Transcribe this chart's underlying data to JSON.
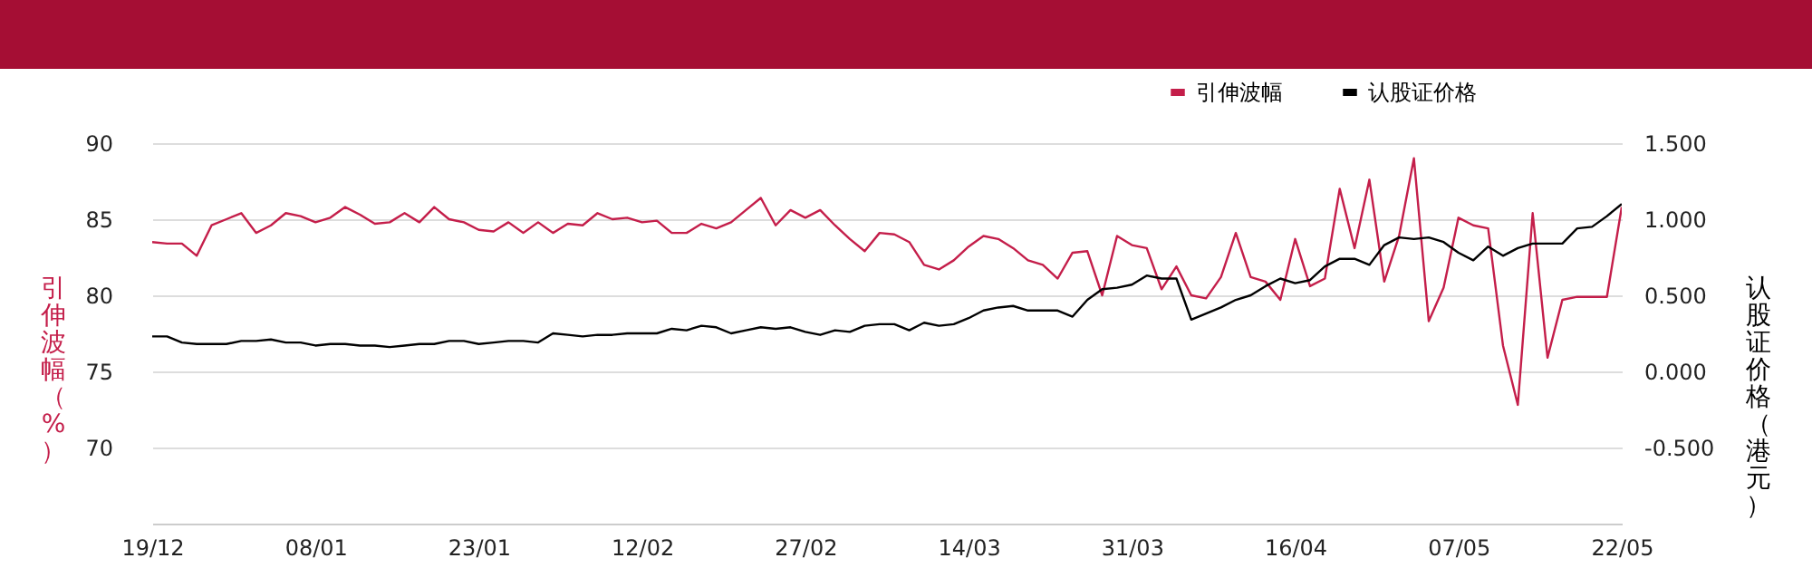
{
  "chart_data": {
    "type": "line",
    "ylabel": "引伸波幅（%）",
    "y2label": "认股证价格（港元）",
    "legend": "top right",
    "grid": "y",
    "categories": [
      "19/12",
      null,
      null,
      null,
      null,
      null,
      null,
      null,
      null,
      null,
      null,
      "08/01",
      null,
      null,
      null,
      null,
      null,
      null,
      null,
      null,
      null,
      null,
      "23/01",
      null,
      null,
      null,
      null,
      null,
      null,
      null,
      null,
      null,
      null,
      "12/02",
      null,
      null,
      null,
      null,
      null,
      null,
      null,
      null,
      null,
      null,
      "27/02",
      null,
      null,
      null,
      null,
      null,
      null,
      null,
      null,
      null,
      null,
      "14/03",
      null,
      null,
      null,
      null,
      null,
      null,
      null,
      null,
      null,
      null,
      "31/03",
      null,
      null,
      null,
      null,
      null,
      null,
      null,
      null,
      null,
      null,
      "16/04",
      null,
      null,
      null,
      null,
      null,
      null,
      null,
      null,
      null,
      null,
      "07/05",
      null,
      null,
      null,
      null,
      null,
      null,
      null,
      null,
      null,
      null,
      "22/05"
    ],
    "ylim": [
      65,
      90
    ],
    "yticks": [
      70,
      75,
      80,
      85,
      90
    ],
    "y2lim": [
      -1,
      1.5
    ],
    "y2ticks": [
      {
        "value": -0.5,
        "label": "-0.500"
      },
      {
        "value": 0,
        "label": "0.000"
      },
      {
        "value": 0.5,
        "label": "0.500"
      },
      {
        "value": 1,
        "label": "1.000"
      },
      {
        "value": 1.5,
        "label": "1.500"
      }
    ],
    "series": [
      {
        "name": "引伸波幅",
        "color": "#c41e4a",
        "values": [
          83.5,
          83.4,
          83.4,
          82.6,
          84.6,
          85.0,
          85.4,
          84.1,
          84.6,
          85.4,
          85.2,
          84.8,
          85.1,
          85.8,
          85.3,
          84.7,
          84.8,
          85.4,
          84.8,
          85.8,
          85.0,
          84.8,
          84.3,
          84.2,
          84.8,
          84.1,
          84.8,
          84.1,
          84.7,
          84.6,
          85.4,
          85.0,
          85.1,
          84.8,
          84.9,
          84.1,
          84.1,
          84.7,
          84.4,
          84.8,
          85.6,
          86.4,
          84.6,
          85.6,
          85.1,
          85.6,
          84.6,
          83.7,
          82.9,
          84.1,
          84.0,
          83.5,
          82.0,
          81.7,
          82.3,
          83.2,
          83.9,
          83.7,
          83.1,
          82.3,
          82.0,
          81.1,
          82.8,
          82.9,
          80.0,
          83.9,
          83.3,
          83.1,
          80.4,
          81.9,
          80.0,
          79.8,
          81.2,
          84.1,
          81.2,
          80.9,
          79.7,
          83.7,
          80.6,
          81.1,
          87.0,
          83.1,
          87.6,
          80.9,
          83.9,
          89.0,
          78.3,
          80.5,
          85.1,
          84.6,
          84.4,
          76.7,
          72.8,
          85.4,
          75.9,
          79.7,
          79.9,
          79.9,
          79.9,
          85.8
        ]
      },
      {
        "name": "认股证价格",
        "color": "#000000",
        "axis": "y2",
        "values": [
          0.23,
          0.23,
          0.19,
          0.18,
          0.18,
          0.18,
          0.2,
          0.2,
          0.21,
          0.19,
          0.19,
          0.17,
          0.18,
          0.18,
          0.17,
          0.17,
          0.16,
          0.17,
          0.18,
          0.18,
          0.2,
          0.2,
          0.18,
          0.19,
          0.2,
          0.2,
          0.19,
          0.25,
          0.24,
          0.23,
          0.24,
          0.24,
          0.25,
          0.25,
          0.25,
          0.28,
          0.27,
          0.3,
          0.29,
          0.25,
          0.27,
          0.29,
          0.28,
          0.29,
          0.26,
          0.24,
          0.27,
          0.26,
          0.3,
          0.31,
          0.31,
          0.27,
          0.32,
          0.3,
          0.31,
          0.35,
          0.4,
          0.42,
          0.43,
          0.4,
          0.4,
          0.4,
          0.36,
          0.47,
          0.54,
          0.55,
          0.57,
          0.63,
          0.61,
          0.61,
          0.34,
          0.38,
          0.42,
          0.47,
          0.5,
          0.56,
          0.61,
          0.58,
          0.6,
          0.69,
          0.74,
          0.74,
          0.7,
          0.83,
          0.88,
          0.87,
          0.88,
          0.85,
          0.78,
          0.73,
          0.82,
          0.76,
          0.81,
          0.84,
          0.84,
          0.84,
          0.94,
          0.95,
          1.02,
          1.1
        ]
      }
    ]
  }
}
